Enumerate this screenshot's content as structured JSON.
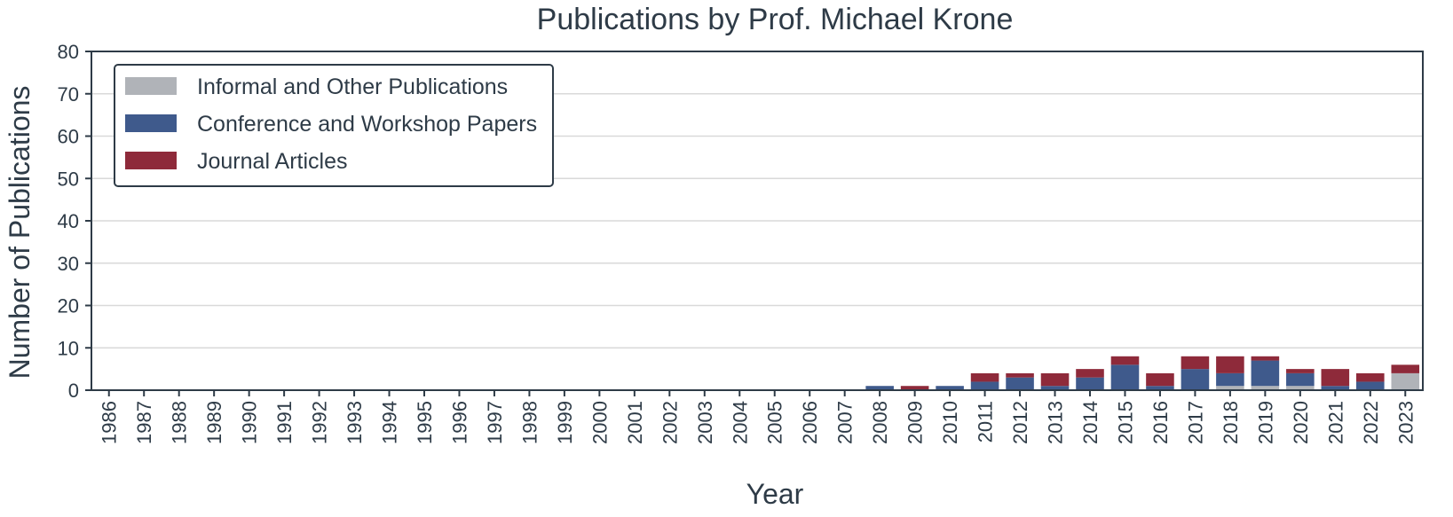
{
  "chart_data": {
    "type": "bar",
    "stacked": true,
    "title": "Publications by Prof. Michael Krone",
    "xlabel": "Year",
    "ylabel": "Number of Publications",
    "ylim": [
      0,
      80
    ],
    "yticks": [
      0,
      10,
      20,
      30,
      40,
      50,
      60,
      70,
      80
    ],
    "grid": "horizontal",
    "legend_position": "top-left",
    "categories": [
      "1986",
      "1987",
      "1988",
      "1989",
      "1990",
      "1991",
      "1992",
      "1993",
      "1994",
      "1995",
      "1996",
      "1997",
      "1998",
      "1999",
      "2000",
      "2001",
      "2002",
      "2003",
      "2004",
      "2005",
      "2006",
      "2007",
      "2008",
      "2009",
      "2010",
      "2011",
      "2012",
      "2013",
      "2014",
      "2015",
      "2016",
      "2017",
      "2018",
      "2019",
      "2020",
      "2021",
      "2022",
      "2023"
    ],
    "series": [
      {
        "name": "Informal and Other Publications",
        "color": "#b0b3b8",
        "values": [
          0,
          0,
          0,
          0,
          0,
          0,
          0,
          0,
          0,
          0,
          0,
          0,
          0,
          0,
          0,
          0,
          0,
          0,
          0,
          0,
          0,
          0,
          0,
          0,
          0,
          0,
          0,
          0,
          0,
          0,
          0,
          0,
          1,
          1,
          1,
          0,
          0,
          4
        ]
      },
      {
        "name": "Conference and Workshop Papers",
        "color": "#3f5a8c",
        "values": [
          0,
          0,
          0,
          0,
          0,
          0,
          0,
          0,
          0,
          0,
          0,
          0,
          0,
          0,
          0,
          0,
          0,
          0,
          0,
          0,
          0,
          0,
          1,
          0,
          1,
          2,
          3,
          1,
          3,
          6,
          1,
          5,
          3,
          6,
          3,
          1,
          2,
          0
        ]
      },
      {
        "name": "Journal Articles",
        "color": "#8e2a3a",
        "values": [
          0,
          0,
          0,
          0,
          0,
          0,
          0,
          0,
          0,
          0,
          0,
          0,
          0,
          0,
          0,
          0,
          0,
          0,
          0,
          0,
          0,
          0,
          0,
          1,
          0,
          2,
          1,
          3,
          2,
          2,
          3,
          3,
          4,
          1,
          1,
          4,
          2,
          2
        ]
      }
    ]
  }
}
